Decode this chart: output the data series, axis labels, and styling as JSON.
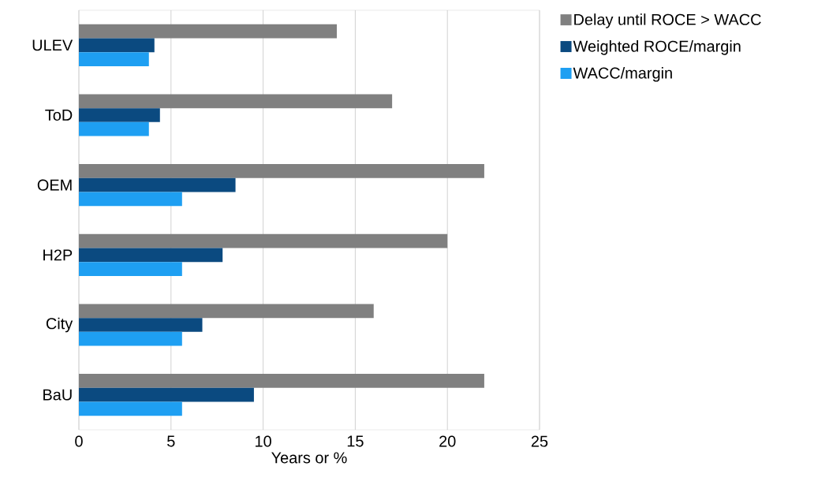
{
  "chart_data": {
    "type": "bar",
    "orientation": "horizontal",
    "xlabel": "Years or %",
    "categories": [
      "ULEV",
      "ToD",
      "OEM",
      "H2P",
      "City",
      "BaU"
    ],
    "series": [
      {
        "name": "Delay until ROCE > WACC",
        "color": "#808080",
        "values": [
          14,
          17,
          22,
          20,
          16,
          22
        ]
      },
      {
        "name": "Weighted ROCE/margin",
        "color": "#0b4a80",
        "values": [
          4.1,
          4.4,
          8.5,
          7.8,
          6.7,
          9.5
        ]
      },
      {
        "name": "WACC/margin",
        "color": "#1e9ff2",
        "values": [
          3.8,
          3.8,
          5.6,
          5.6,
          5.6,
          5.6
        ]
      }
    ],
    "xlim": [
      0,
      25
    ],
    "xticks": [
      0,
      5,
      10,
      15,
      20,
      25
    ],
    "grid": "x",
    "legend": "right"
  }
}
